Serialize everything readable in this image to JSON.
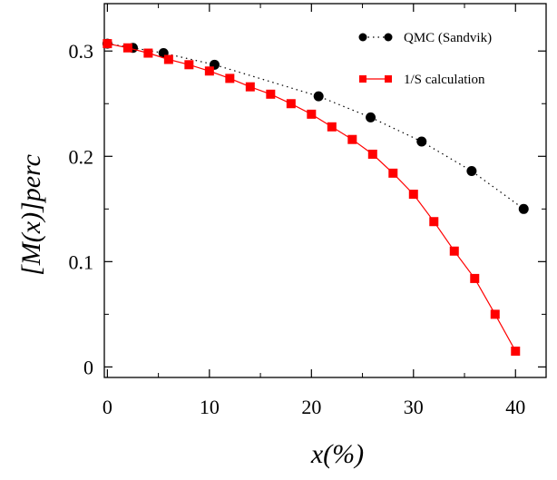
{
  "chart_data": {
    "type": "line",
    "xlabel": "x(%)",
    "ylabel": "[M(x)]perc",
    "xlim": [
      -0.3,
      43
    ],
    "ylim": [
      -0.01,
      0.345
    ],
    "x_ticks": [
      0,
      10,
      20,
      30,
      40
    ],
    "y_ticks": [
      0,
      0.1,
      0.2,
      0.3
    ],
    "x_tick_labels": [
      "0",
      "10",
      "20",
      "30",
      "40"
    ],
    "y_tick_labels": [
      "0",
      "0.1",
      "0.2",
      "0.3"
    ],
    "grid": false,
    "legend_position": "top-right",
    "series": [
      {
        "name": "QMC (Sandvik)",
        "color": "#000000",
        "marker": "circle",
        "line_style": "dotted",
        "x": [
          0,
          2.5,
          5.5,
          10.5,
          20.7,
          25.8,
          30.8,
          35.7,
          40.8
        ],
        "y": [
          0.307,
          0.303,
          0.298,
          0.287,
          0.257,
          0.237,
          0.214,
          0.186,
          0.15
        ]
      },
      {
        "name": "1/S calculation",
        "color": "#ff0000",
        "marker": "square",
        "line_style": "solid",
        "x": [
          0,
          2,
          4,
          6,
          8,
          10,
          12,
          14,
          16,
          18,
          20,
          22,
          24,
          26,
          28,
          30,
          32,
          34,
          36,
          38,
          40
        ],
        "y": [
          0.307,
          0.303,
          0.298,
          0.292,
          0.287,
          0.281,
          0.274,
          0.266,
          0.259,
          0.25,
          0.24,
          0.228,
          0.216,
          0.202,
          0.184,
          0.164,
          0.138,
          0.11,
          0.084,
          0.05,
          0.015
        ]
      }
    ]
  }
}
